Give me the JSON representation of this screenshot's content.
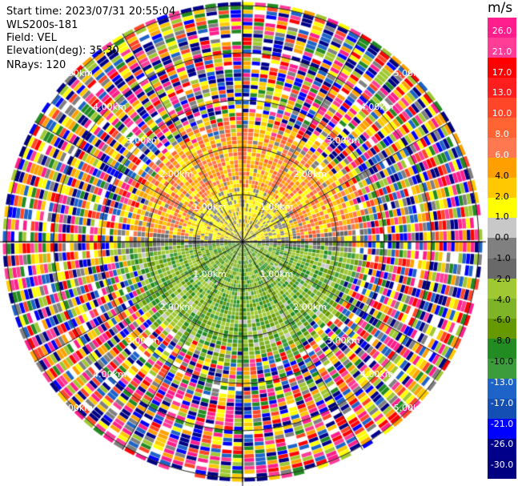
{
  "header": {
    "start_time": "Start time: 2023/07/31 20:55:04",
    "site": "WLS200s-181",
    "field": "Field: VEL",
    "elevation": "Elevation(deg): 35.30",
    "nrays": "NRays: 120"
  },
  "chart_data": {
    "type": "heatmap",
    "projection": "polar (PPI scan)",
    "grid": true,
    "units": "m/s",
    "range_rings_labels": [
      "1.00km",
      "2.00km",
      "3.00km",
      "4.00km",
      "5.00km"
    ],
    "colorbar": {
      "title": "m/s",
      "placement": "right",
      "ticks": [
        "26.0",
        "21.0",
        "17.0",
        "13.0",
        "10.0",
        "8.0",
        "6.0",
        "4.0",
        "2.0",
        "1.0",
        "0.0",
        "-1.0",
        "-2.0",
        "-4.0",
        "-6.0",
        "-8.0",
        "-10.0",
        "-13.0",
        "-17.0",
        "-21.0",
        "-26.0",
        "-30.0"
      ],
      "colors": [
        "#ff1e8c",
        "#ff3c96",
        "#ff0000",
        "#ff1e1e",
        "#ff4628",
        "#ff6432",
        "#ff7850",
        "#ffa000",
        "#ffc800",
        "#ffff00",
        "#c8c8c8",
        "#808080",
        "#696969",
        "#a0c832",
        "#80b428",
        "#669900",
        "#228b22",
        "#3c9c3c",
        "#1e64c8",
        "#1450b4",
        "#0000ff",
        "#00008b",
        "#000080"
      ]
    },
    "description_fields": {
      "near_field_north": "positive (yellow to orange, about 2 to 8 m/s)",
      "near_field_south": "negative (green, about -2 to -6 m/s)",
      "far_field": "noisy / multicolored"
    }
  }
}
